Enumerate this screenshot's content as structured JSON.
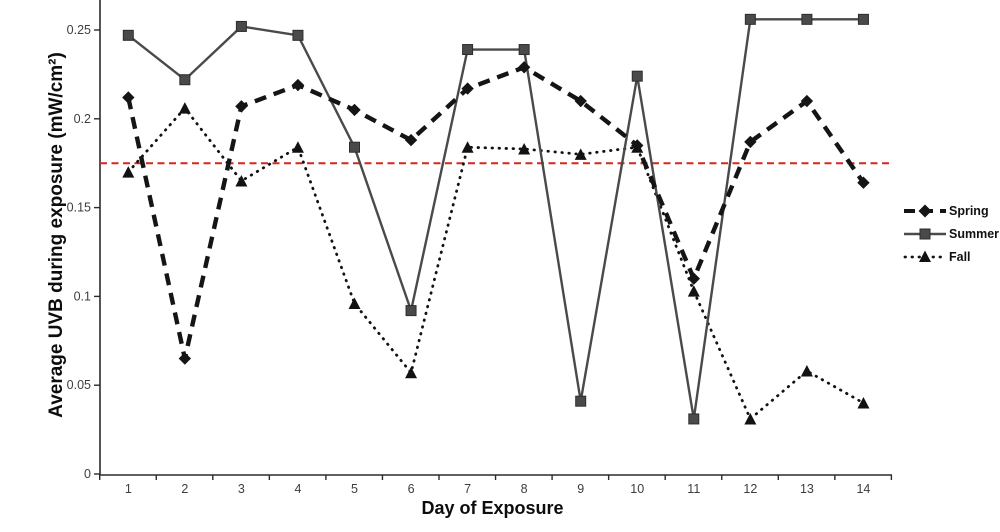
{
  "figure": {
    "background": "#ffffff"
  },
  "chart_data": {
    "type": "line",
    "title": "",
    "xlabel": "Day of Exposure",
    "ylabel": "Average UVB during exposure (mW/cm²)",
    "grid": false,
    "legend_position": "right",
    "x": [
      1,
      2,
      3,
      4,
      5,
      6,
      7,
      8,
      9,
      10,
      11,
      12,
      13,
      14
    ],
    "x_tick_labels": [
      "1",
      "2",
      "3",
      "4",
      "5",
      "6",
      "7",
      "8",
      "9",
      "10",
      "11",
      "12",
      "13",
      "14"
    ],
    "y_ticks": [
      0,
      0.05,
      0.1,
      0.15,
      0.2,
      0.25
    ],
    "y_tick_labels": [
      "0",
      "0.05",
      "0.1",
      "0.15",
      "0.2",
      "0.25"
    ],
    "ylim": [
      0,
      0.265
    ],
    "series": [
      {
        "name": "Spring",
        "marker": "diamond",
        "line_style": "dashed",
        "color": "#151515",
        "values": [
          0.212,
          0.065,
          0.207,
          0.219,
          0.205,
          0.188,
          0.217,
          0.229,
          0.21,
          0.185,
          0.11,
          0.187,
          0.21,
          0.164
        ]
      },
      {
        "name": "Summer",
        "marker": "square",
        "line_style": "solid",
        "color": "#4a4a4a",
        "values": [
          0.247,
          0.222,
          0.252,
          0.247,
          0.184,
          0.092,
          0.239,
          0.239,
          0.041,
          0.224,
          0.031,
          0.256,
          0.256,
          0.256
        ]
      },
      {
        "name": "Fall",
        "marker": "triangle",
        "line_style": "dotted",
        "color": "#121212",
        "values": [
          0.17,
          0.206,
          0.165,
          0.184,
          0.096,
          0.057,
          0.184,
          0.183,
          0.18,
          0.184,
          0.103,
          0.031,
          0.058,
          0.04
        ]
      }
    ],
    "reference_line": {
      "value": 0.175,
      "color": "#da241c",
      "style": "dashed"
    }
  }
}
